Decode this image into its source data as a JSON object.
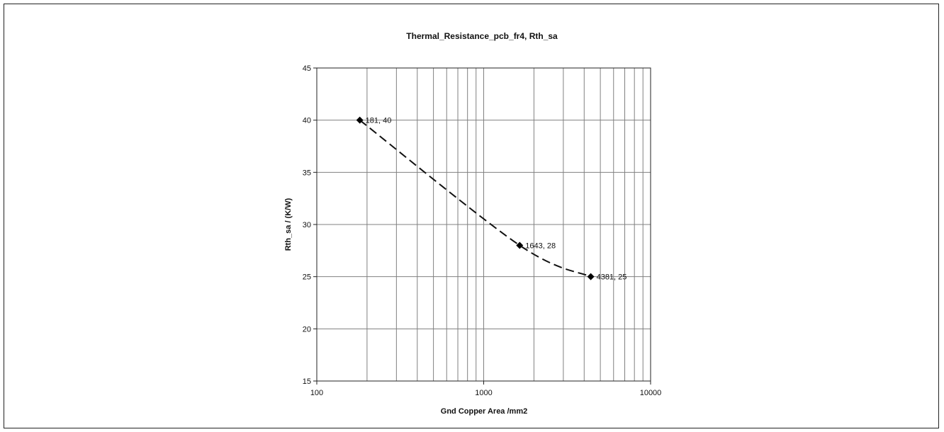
{
  "chart_data": {
    "type": "scatter",
    "title": "Thermal_Resistance_pcb_fr4, Rth_sa",
    "xlabel": "Gnd Copper Area /mm2",
    "ylabel": "Rth_sa / (K/W)",
    "xscale": "log",
    "xlim": [
      100,
      10000
    ],
    "ylim": [
      15,
      45
    ],
    "x_ticks": [
      "100",
      "1000",
      "10000"
    ],
    "y_ticks": [
      "15",
      "20",
      "25",
      "30",
      "35",
      "40",
      "45"
    ],
    "grid": true,
    "line_style": "dashed smoothed",
    "marker": "diamond",
    "series": [
      {
        "x": [
          181,
          1643,
          4381
        ],
        "y": [
          40,
          28,
          25
        ],
        "labels": [
          "181, 40",
          "1643, 28",
          "4381, 25"
        ]
      }
    ]
  }
}
